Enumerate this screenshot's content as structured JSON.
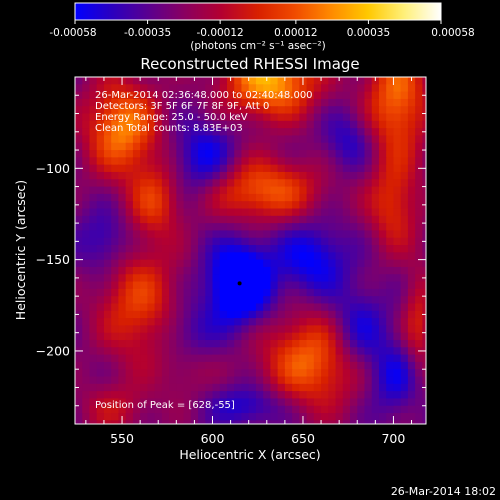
{
  "colorbar": {
    "tick_labels": [
      "-0.00058",
      "-0.00035",
      "-0.00012",
      "0.00012",
      "0.00035",
      "0.00058"
    ],
    "tick_values": [
      -0.00058,
      -0.00035,
      -0.00012,
      0.00012,
      0.00035,
      0.00058
    ],
    "range": [
      -0.00058,
      0.00058
    ],
    "units_label": "(photons cm⁻² s⁻¹ asec⁻²)",
    "colors": [
      "#0000ff",
      "#2a00c0",
      "#5a0090",
      "#8a0060",
      "#b40030",
      "#d82000",
      "#f04a00",
      "#ff8a00",
      "#ffc800",
      "#fff07a",
      "#ffffff"
    ]
  },
  "plot": {
    "title": "Reconstructed RHESSI Image",
    "info_lines": [
      "26-Mar-2014 02:36:48.000 to 02:40:48.000",
      "Detectors: 3F 5F 6F 7F 8F 9F, Att 0",
      "Energy Range: 25.0 - 50.0 keV",
      "Clean    Total counts: 8.83E+03"
    ],
    "peak_text": "Position of Peak = [628,-55]"
  },
  "footer": {
    "timestamp": "26-Mar-2014 18:02"
  },
  "chart_data": {
    "type": "heatmap",
    "title": "Reconstructed RHESSI Image",
    "xlabel": "Heliocentric X (arcsec)",
    "ylabel": "Heliocentric Y (arcsec)",
    "xlim": [
      524,
      718
    ],
    "ylim": [
      -240,
      -50
    ],
    "x_ticks": [
      550,
      600,
      650,
      700
    ],
    "x_tick_labels": [
      "550",
      "600",
      "650",
      "700"
    ],
    "y_ticks": [
      -100,
      -150,
      -200
    ],
    "y_tick_labels": [
      "−100",
      "−150",
      "−200"
    ],
    "value_range": [
      -0.00058,
      0.00058
    ],
    "colormap": "RHESSI red-temperature",
    "peak_position": [
      628,
      -55
    ],
    "sources": [
      {
        "x": 632,
        "y": -52,
        "amp": 0.00058,
        "sx": 18,
        "sy": 14
      },
      {
        "x": 702,
        "y": -62,
        "amp": 0.00045,
        "sx": 12,
        "sy": 22
      },
      {
        "x": 550,
        "y": -78,
        "amp": 0.0005,
        "sx": 14,
        "sy": 18
      },
      {
        "x": 628,
        "y": -112,
        "amp": 0.00042,
        "sx": 22,
        "sy": 12
      },
      {
        "x": 568,
        "y": -118,
        "amp": 0.0003,
        "sx": 10,
        "sy": 14
      },
      {
        "x": 700,
        "y": -120,
        "amp": 0.0003,
        "sx": 10,
        "sy": 18
      },
      {
        "x": 656,
        "y": -205,
        "amp": 0.00045,
        "sx": 20,
        "sy": 18
      },
      {
        "x": 560,
        "y": -175,
        "amp": 0.00035,
        "sx": 16,
        "sy": 22
      },
      {
        "x": 546,
        "y": -232,
        "amp": 0.00018,
        "sx": 14,
        "sy": 10
      },
      {
        "x": 714,
        "y": -185,
        "amp": 0.00025,
        "sx": 6,
        "sy": 20
      },
      {
        "x": 585,
        "y": -210,
        "amp": 0.00012,
        "sx": 10,
        "sy": 12
      },
      {
        "x": 615,
        "y": -163,
        "amp": -0.00058,
        "sx": 12,
        "sy": 15
      },
      {
        "x": 655,
        "y": -150,
        "amp": -0.0003,
        "sx": 14,
        "sy": 14
      },
      {
        "x": 680,
        "y": -190,
        "amp": -0.0003,
        "sx": 12,
        "sy": 16
      },
      {
        "x": 595,
        "y": -95,
        "amp": -0.0003,
        "sx": 12,
        "sy": 14
      },
      {
        "x": 585,
        "y": -190,
        "amp": -0.0002,
        "sx": 12,
        "sy": 12
      },
      {
        "x": 700,
        "y": -215,
        "amp": -0.00025,
        "sx": 10,
        "sy": 14
      },
      {
        "x": 540,
        "y": -140,
        "amp": -0.00022,
        "sx": 10,
        "sy": 12
      },
      {
        "x": 675,
        "y": -85,
        "amp": -0.0002,
        "sx": 10,
        "sy": 12
      },
      {
        "x": 620,
        "y": -230,
        "amp": -0.00025,
        "sx": 14,
        "sy": 8
      }
    ],
    "grid": false
  }
}
